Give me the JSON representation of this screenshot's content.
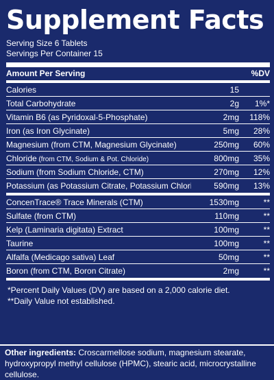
{
  "title": "Supplement Facts",
  "serving_size": "Serving Size 6 Tablets",
  "servings_per_container": "Servings Per Container 15",
  "header": {
    "amount_label": "Amount Per Serving",
    "dv_label": "%DV"
  },
  "rows_top": [
    {
      "name": "Calories",
      "sub": "",
      "amount": "15",
      "dv": ""
    },
    {
      "name": "Total Carbohydrate",
      "sub": "",
      "amount": "2g",
      "dv": "1%*"
    },
    {
      "name": "Vitamin B6 (as Pyridoxal-5-Phosphate)",
      "sub": "",
      "amount": "2mg",
      "dv": "118%"
    },
    {
      "name": "Iron (as Iron Glycinate)",
      "sub": "",
      "amount": "5mg",
      "dv": "28%"
    },
    {
      "name": "Magnesium (from CTM, Magnesium Glycinate)",
      "sub": "",
      "amount": "250mg",
      "dv": "60%"
    },
    {
      "name": "Chloride",
      "sub": " (from CTM, Sodium & Pot. Chloride)",
      "amount": "800mg",
      "dv": "35%"
    },
    {
      "name": "Sodium (from Sodium Chloride, CTM)",
      "sub": "",
      "amount": "270mg",
      "dv": "12%"
    },
    {
      "name": "Potassium (as Potassium Citrate, Potassium Chloride )",
      "sub": "",
      "amount": "590mg",
      "dv": "13%"
    }
  ],
  "rows_bottom": [
    {
      "name": "ConcenTrace® Trace Minerals (CTM)",
      "amount": "1530mg",
      "dv": "**"
    },
    {
      "name": "Sulfate (from CTM)",
      "amount": "110mg",
      "dv": "**"
    },
    {
      "name": "Kelp (Laminaria digitata) Extract",
      "amount": "100mg",
      "dv": "**"
    },
    {
      "name": "Taurine",
      "amount": "100mg",
      "dv": "**"
    },
    {
      "name": "Alfalfa (Medicago sativa) Leaf",
      "amount": "50mg",
      "dv": "**"
    },
    {
      "name": "Boron (from CTM, Boron Citrate)",
      "amount": "2mg",
      "dv": "**"
    }
  ],
  "footnotes": [
    "*Percent Daily Values (DV) are based on a 2,000 calorie diet.",
    "**Daily Value not established."
  ],
  "other_ingredients": {
    "label": "Other ingredients:",
    "text": " Croscarmellose sodium, magnesium stearate, hydroxypropyl methyl cellulose (HPMC), stearic acid, microcrystalline cellulose."
  },
  "colors": {
    "background": "#1a2a6c",
    "text": "#ffffff"
  }
}
